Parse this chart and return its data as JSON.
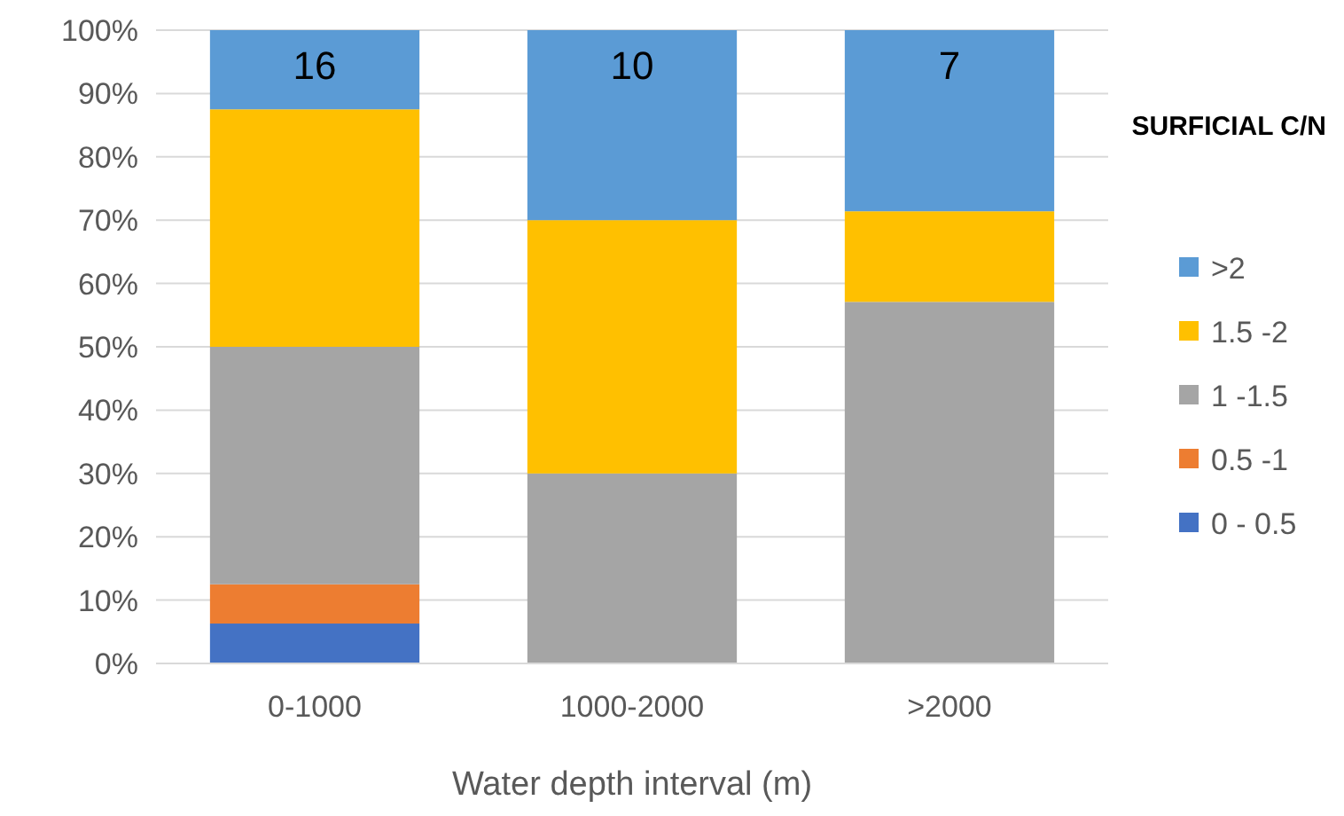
{
  "chart_data": {
    "type": "bar",
    "stacked": true,
    "xlabel": "Water depth interval (m)",
    "legend_title": "SURFICIAL C/N",
    "categories": [
      "0-1000",
      "1000-2000",
      ">2000"
    ],
    "series": [
      {
        "name": "0 - 0.5",
        "color": "#4472c4",
        "values": [
          6.3,
          0,
          0
        ]
      },
      {
        "name": "0.5 -1",
        "color": "#ed7d31",
        "values": [
          6.2,
          0,
          0
        ]
      },
      {
        "name": "1 -1.5",
        "color": "#a5a5a5",
        "values": [
          37.5,
          30,
          57.1
        ]
      },
      {
        "name": "1.5 -2",
        "color": "#ffc000",
        "values": [
          37.5,
          40,
          14.3
        ]
      },
      {
        "name": ">2",
        "color": "#5b9bd5",
        "values": [
          12.5,
          30,
          28.6
        ]
      }
    ],
    "ylim": [
      0,
      100
    ],
    "yticks": [
      {
        "value": 0,
        "label": "0%"
      },
      {
        "value": 10,
        "label": "10%"
      },
      {
        "value": 20,
        "label": "20%"
      },
      {
        "value": 30,
        "label": "30%"
      },
      {
        "value": 40,
        "label": "40%"
      },
      {
        "value": 50,
        "label": "50%"
      },
      {
        "value": 60,
        "label": "60%"
      },
      {
        "value": 70,
        "label": "70%"
      },
      {
        "value": 80,
        "label": "80%"
      },
      {
        "value": 90,
        "label": "90%"
      },
      {
        "value": 100,
        "label": "100%"
      }
    ],
    "grid": "y",
    "legend": "right",
    "annotations": [
      "16",
      "10",
      "7"
    ]
  }
}
